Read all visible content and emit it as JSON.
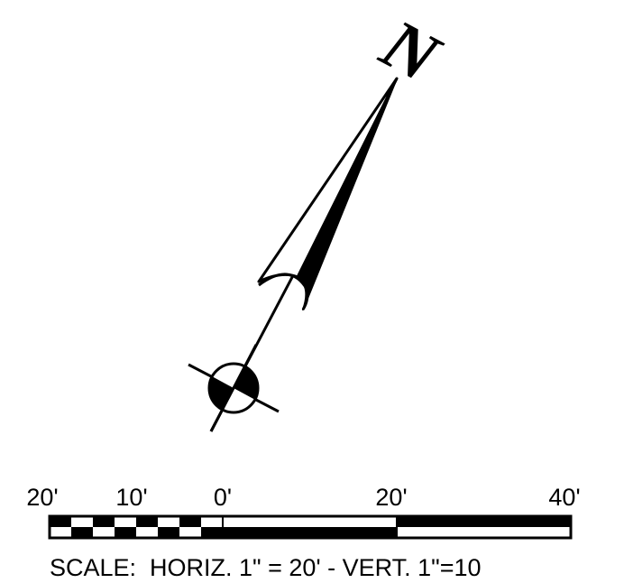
{
  "north_arrow": {
    "letter": "N",
    "icon": "north-arrow-icon"
  },
  "scale_bar": {
    "ticks": [
      {
        "label": "20'",
        "value": -20
      },
      {
        "label": "10'",
        "value": -10
      },
      {
        "label": "0'",
        "value": 0
      },
      {
        "label": "20'",
        "value": 20
      },
      {
        "label": "40'",
        "value": 40
      }
    ],
    "caption": "SCALE:  HORIZ. 1\" = 20' - VERT. 1\"=10"
  },
  "colors": {
    "ink": "#000000",
    "paper": "#ffffff"
  }
}
